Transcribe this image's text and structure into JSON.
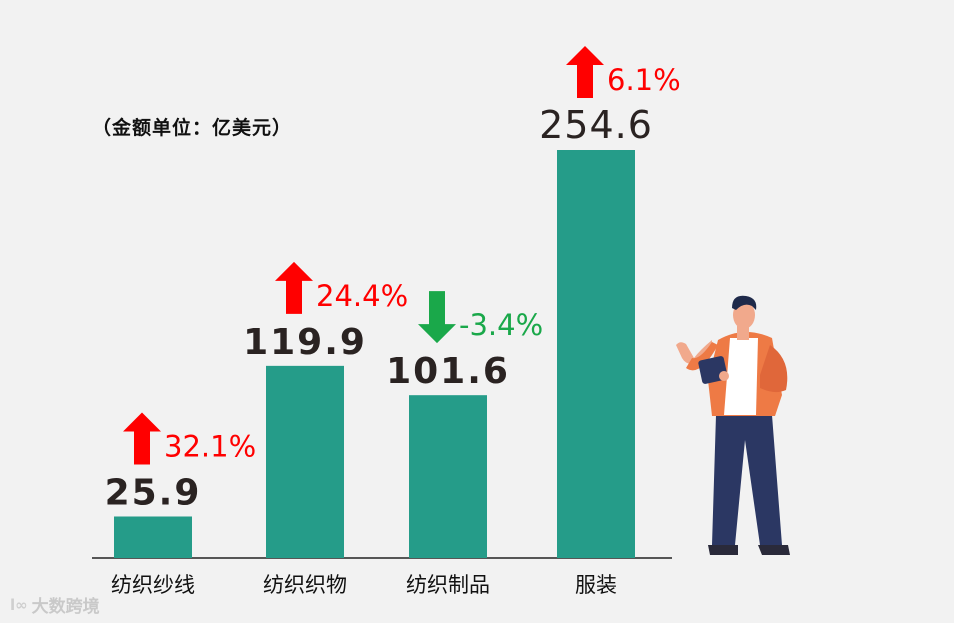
{
  "unit_note": "（金额单位：亿美元）",
  "watermark": {
    "logo": "l∞",
    "text": "大数跨境"
  },
  "colors": {
    "bar": "#259c89",
    "up": "#ff0000",
    "down": "#1aa84a",
    "value": "#2a2322",
    "axis": "#222222"
  },
  "chart_data": {
    "type": "bar",
    "title": "",
    "xlabel": "",
    "ylabel": "",
    "unit": "亿美元",
    "ylim": [
      0,
      254.6
    ],
    "categories": [
      "纺织纱线",
      "纺织织物",
      "纺织制品",
      "服装"
    ],
    "values": [
      25.9,
      119.9,
      101.6,
      254.6
    ],
    "value_labels": [
      "25.9",
      "119.9",
      "101.6",
      "254.6"
    ],
    "changes": [
      {
        "label": "32.1%",
        "direction": "up"
      },
      {
        "label": "24.4%",
        "direction": "up"
      },
      {
        "label": "-3.4%",
        "direction": "down"
      },
      {
        "label": "6.1%",
        "direction": "up"
      }
    ]
  }
}
